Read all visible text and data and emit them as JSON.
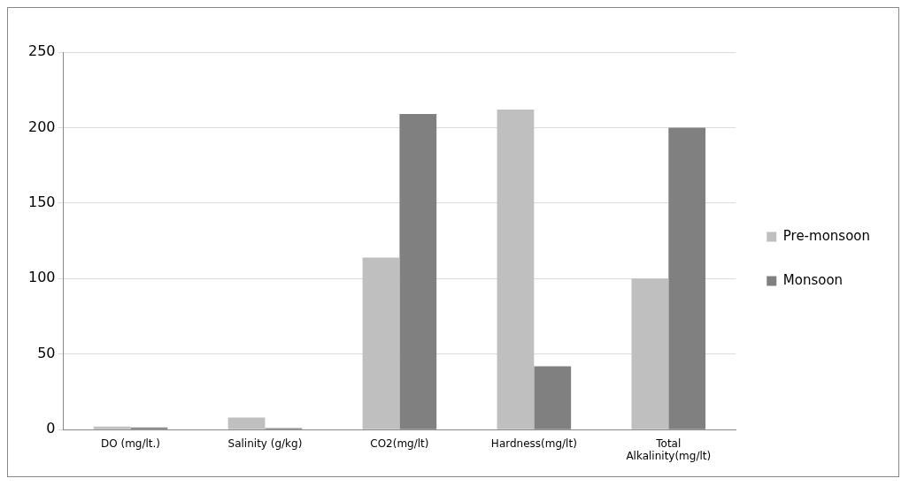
{
  "chart_data": {
    "type": "bar",
    "categories": [
      "DO (mg/lt.)",
      "Salinity (g/kg)",
      "CO2(mg/lt)",
      "Hardness(mg/lt)",
      "Total Alkalinity(mg/lt)"
    ],
    "series": [
      {
        "name": "Pre-monsoon",
        "color": "#bfbfbf",
        "values": [
          2,
          8,
          114,
          212,
          100
        ]
      },
      {
        "name": "Monsoon",
        "color": "#808080",
        "values": [
          1.5,
          1,
          209,
          42,
          200
        ]
      }
    ],
    "ylim": [
      0,
      250
    ],
    "yticks": [
      0,
      50,
      100,
      150,
      200,
      250
    ],
    "grid": "y",
    "legend": "right"
  }
}
